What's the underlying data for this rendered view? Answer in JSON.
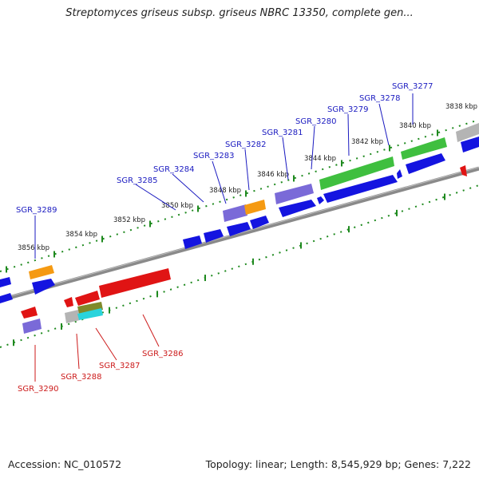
{
  "title": "Streptomyces griseus subsp. griseus NBRC 13350, complete gen...",
  "footer": {
    "accession": "Accession: NC_010572",
    "topology": "Topology: linear; Length: 8,545,929 bp; Genes: 7,222"
  },
  "colors": {
    "backbone": "#8a8a8a",
    "ticks": "#1f8a1f",
    "plus_label": "#1a1ac0",
    "minus_label": "#cc1a1a",
    "blue": "#1414e0",
    "red": "#e01414",
    "orange": "#f59a12",
    "purple": "#7a6ad8",
    "green": "#3fbf3f",
    "gray": "#b4b4b4",
    "olive": "#7f8a2a",
    "cyan": "#2ad4dc"
  },
  "kbp_labels": [
    "3838 kbp",
    "3840 kbp",
    "3842 kbp",
    "3844 kbp",
    "3846 kbp",
    "3848 kbp",
    "3850 kbp",
    "3852 kbp",
    "3854 kbp",
    "3856 kbp"
  ],
  "genes_plus": [
    "SGR_3277",
    "SGR_3278",
    "SGR_3279",
    "SGR_3280",
    "SGR_3281",
    "SGR_3282",
    "SGR_3283",
    "SGR_3284",
    "SGR_3285",
    "SGR_3289"
  ],
  "genes_minus": [
    "SGR_3286",
    "SGR_3287",
    "SGR_3288",
    "SGR_3290"
  ]
}
